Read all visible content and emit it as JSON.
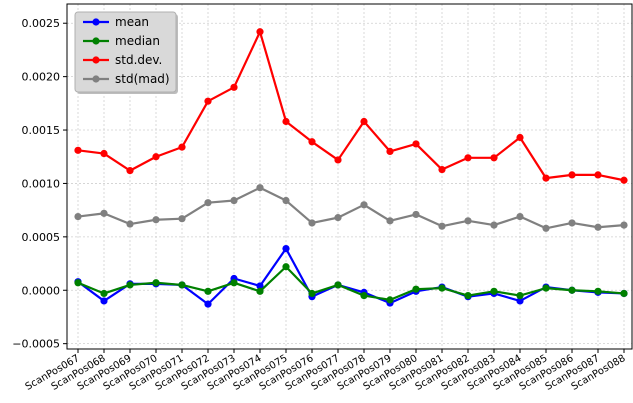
{
  "chart_data": {
    "type": "line",
    "title": "",
    "xlabel": "",
    "ylabel": "",
    "categories": [
      "ScanPos067",
      "ScanPos068",
      "ScanPos069",
      "ScanPos070",
      "ScanPos071",
      "ScanPos072",
      "ScanPos073",
      "ScanPos074",
      "ScanPos075",
      "ScanPos076",
      "ScanPos077",
      "ScanPos078",
      "ScanPos079",
      "ScanPos080",
      "ScanPos081",
      "ScanPos082",
      "ScanPos083",
      "ScanPos084",
      "ScanPos085",
      "ScanPos086",
      "ScanPos087",
      "ScanPos088"
    ],
    "ylim": [
      -0.00055,
      0.00268
    ],
    "yticks": [
      -0.0005,
      0.0,
      0.0005,
      0.001,
      0.0015,
      0.002,
      0.0025
    ],
    "ytick_labels": [
      "−0.0005",
      "0.0000",
      "0.0005",
      "0.0010",
      "0.0015",
      "0.0020",
      "0.0025"
    ],
    "grid": true,
    "legend_position": "top-left",
    "series": [
      {
        "name": "mean",
        "color": "#0000ff",
        "values": [
          8e-05,
          -0.0001,
          6e-05,
          6e-05,
          5e-05,
          -0.00013,
          0.00011,
          4e-05,
          0.00039,
          -6e-05,
          5e-05,
          -2e-05,
          -0.00012,
          -1e-05,
          3e-05,
          -6e-05,
          -3e-05,
          -0.0001,
          3e-05,
          0.0,
          -2e-05,
          -3e-05
        ]
      },
      {
        "name": "median",
        "color": "#008000",
        "values": [
          7e-05,
          -3e-05,
          5e-05,
          7e-05,
          5e-05,
          -1e-05,
          7e-05,
          -1e-05,
          0.00022,
          -3e-05,
          5e-05,
          -5e-05,
          -9e-05,
          1e-05,
          2e-05,
          -5e-05,
          -1e-05,
          -5e-05,
          2e-05,
          0.0,
          -1e-05,
          -3e-05
        ]
      },
      {
        "name": "std.dev.",
        "color": "#ff0000",
        "values": [
          0.00131,
          0.00128,
          0.00112,
          0.00125,
          0.00134,
          0.00177,
          0.0019,
          0.00242,
          0.00158,
          0.00139,
          0.00122,
          0.00158,
          0.0013,
          0.00137,
          0.00113,
          0.00124,
          0.00124,
          0.00143,
          0.00105,
          0.00108,
          0.00108,
          0.00103
        ]
      },
      {
        "name": "std(mad)",
        "color": "#808080",
        "values": [
          0.00069,
          0.00072,
          0.00062,
          0.00066,
          0.00067,
          0.00082,
          0.00084,
          0.00096,
          0.00084,
          0.00063,
          0.00068,
          0.0008,
          0.00065,
          0.00071,
          0.0006,
          0.00065,
          0.00061,
          0.00069,
          0.00058,
          0.00063,
          0.00059,
          0.00061
        ]
      }
    ]
  }
}
